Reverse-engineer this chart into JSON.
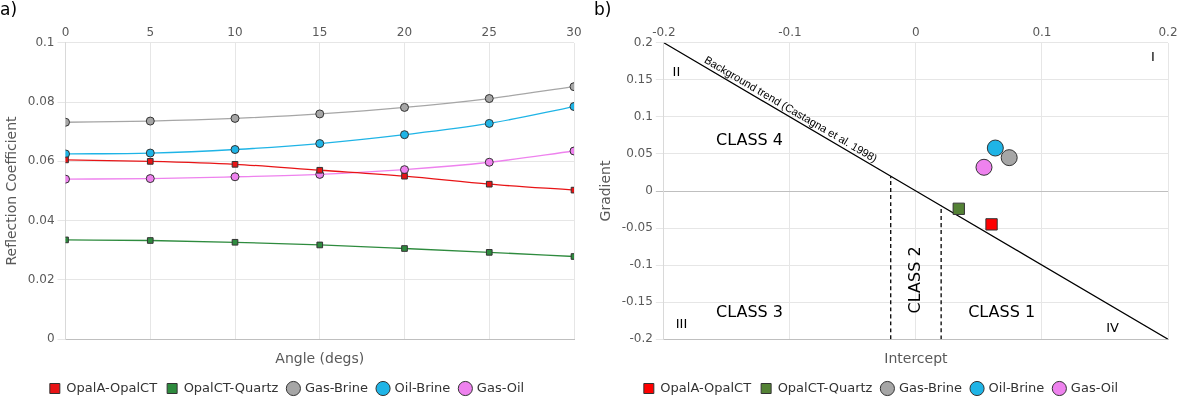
{
  "chart_data": [
    {
      "type": "line",
      "title": "a)",
      "xlabel": "Angle (degs)",
      "ylabel": "Reflection Coefficient",
      "x": [
        0,
        5,
        10,
        15,
        20,
        25,
        30
      ],
      "xlim": [
        0,
        30
      ],
      "xticks": [
        0,
        5,
        10,
        15,
        20,
        25,
        30
      ],
      "ylim": [
        0,
        0.1
      ],
      "yticks": [
        0,
        0.02,
        0.04,
        0.06,
        0.08,
        0.1
      ],
      "grid": true,
      "legend": "bottom",
      "line_style": "solid",
      "series": [
        {
          "name": "OpalA-OpalCT",
          "color": "#e81416",
          "marker": "square",
          "values": [
            0.0605,
            0.06,
            0.059,
            0.057,
            0.055,
            0.0523,
            0.0503
          ]
        },
        {
          "name": "OpalCT-Quartz",
          "color": "#2e8b3e",
          "marker": "square",
          "values": [
            0.0335,
            0.0333,
            0.0327,
            0.0318,
            0.0306,
            0.0293,
            0.0279
          ]
        },
        {
          "name": "Gas-Brine",
          "color": "#a6a6a6",
          "marker": "circle",
          "values": [
            0.0732,
            0.0736,
            0.0745,
            0.076,
            0.0782,
            0.0812,
            0.0852
          ]
        },
        {
          "name": "Oil-Brine",
          "color": "#1fb4e6",
          "marker": "circle",
          "values": [
            0.0625,
            0.0628,
            0.064,
            0.066,
            0.069,
            0.0728,
            0.0785
          ]
        },
        {
          "name": "Gas-Oil",
          "color": "#ee82ee",
          "marker": "circle",
          "values": [
            0.054,
            0.0542,
            0.0548,
            0.0556,
            0.0572,
            0.0597,
            0.0635
          ]
        }
      ]
    },
    {
      "type": "scatter",
      "title": "b)",
      "xlabel": "Intercept",
      "ylabel": "Gradient",
      "xlim": [
        -0.2,
        0.2
      ],
      "xticks": [
        -0.2,
        -0.1,
        0,
        0.1,
        0.2
      ],
      "ylim": [
        -0.2,
        0.2
      ],
      "yticks": [
        -0.2,
        -0.15,
        -0.1,
        -0.05,
        0,
        0.05,
        0.1,
        0.15,
        0.2
      ],
      "grid": true,
      "legend": "bottom",
      "series": [
        {
          "name": "OpalA-OpalCT",
          "color": "#ff0000",
          "marker": "square",
          "x": [
            0.06
          ],
          "values": [
            -0.045
          ]
        },
        {
          "name": "OpalCT-Quartz",
          "color": "#548235",
          "marker": "square",
          "x": [
            0.034
          ],
          "values": [
            -0.024
          ]
        },
        {
          "name": "Gas-Brine",
          "color": "#a6a6a6",
          "marker": "circle",
          "x": [
            0.074
          ],
          "values": [
            0.045
          ]
        },
        {
          "name": "Oil-Brine",
          "color": "#1fb4e6",
          "marker": "circle",
          "x": [
            0.063
          ],
          "values": [
            0.058
          ]
        },
        {
          "name": "Gas-Oil",
          "color": "#ee82ee",
          "marker": "circle",
          "x": [
            0.054
          ],
          "values": [
            0.032
          ]
        },
        {
          "name": "Background trend (Castagna et al. 1998)",
          "type": "line",
          "color": "#000000",
          "marker": "none",
          "line_style": "solid",
          "x": [
            -0.2,
            0.2
          ],
          "values": [
            0.2,
            -0.2
          ]
        },
        {
          "type": "line",
          "color": "#000000",
          "marker": "none",
          "line_style": "dashed",
          "x": [
            -0.02,
            -0.02
          ],
          "values": [
            -0.2,
            0.02
          ]
        },
        {
          "type": "line",
          "color": "#000000",
          "marker": "none",
          "line_style": "dashed",
          "x": [
            0.02,
            0.02
          ],
          "values": [
            -0.2,
            -0.02
          ]
        }
      ],
      "annotations": [
        "CLASS 4",
        "CLASS 3",
        "CLASS 2",
        "CLASS 1",
        "I",
        "II",
        "III",
        "IV"
      ]
    }
  ]
}
